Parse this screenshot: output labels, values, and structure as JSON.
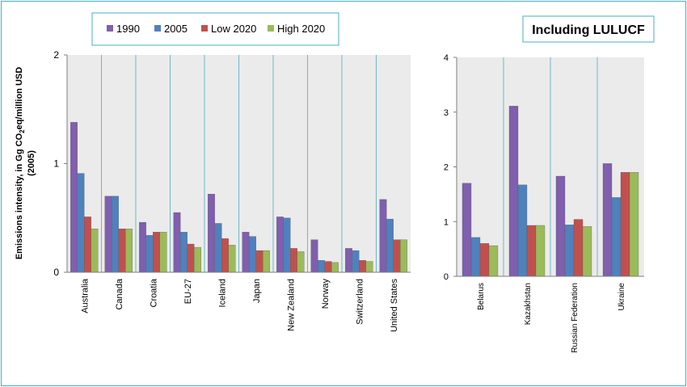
{
  "legend": {
    "entries": [
      {
        "label": "1990",
        "color": "#7f5fae"
      },
      {
        "label": "2005",
        "color": "#4f81bd"
      },
      {
        "label": "Low 2020",
        "color": "#c0504d"
      },
      {
        "label": "High 2020",
        "color": "#9bbb59"
      }
    ]
  },
  "title_right": "Including LULUCF",
  "ylabel_line1": "Emissions intensity, in Gg CO",
  "ylabel_sub": "2",
  "ylabel_line1_end": "eq/million USD",
  "ylabel_line2": "(2005)",
  "chart_data": [
    {
      "type": "bar",
      "categories": [
        "Australia",
        "Canada",
        "Croatia",
        "EU-27",
        "Iceland",
        "Japan",
        "New Zealand",
        "Norway",
        "Switzerland",
        "United States"
      ],
      "series": [
        {
          "name": "1990",
          "values": [
            1.38,
            0.7,
            0.46,
            0.55,
            0.72,
            0.37,
            0.51,
            0.3,
            0.22,
            0.67
          ]
        },
        {
          "name": "2005",
          "values": [
            0.91,
            0.7,
            0.34,
            0.37,
            0.45,
            0.33,
            0.5,
            0.11,
            0.2,
            0.49
          ]
        },
        {
          "name": "Low 2020",
          "values": [
            0.51,
            0.4,
            0.37,
            0.26,
            0.31,
            0.2,
            0.22,
            0.1,
            0.11,
            0.3
          ]
        },
        {
          "name": "High 2020",
          "values": [
            0.4,
            0.4,
            0.37,
            0.23,
            0.25,
            0.2,
            0.19,
            0.09,
            0.1,
            0.3
          ]
        }
      ],
      "ylim": [
        0,
        2
      ],
      "yticks": [
        "0",
        "1",
        "2"
      ],
      "grid": false
    },
    {
      "type": "bar",
      "title": "Including LULUCF",
      "categories": [
        "Belarus",
        "Kazakhstan",
        "Russian Federation",
        "Ukraine"
      ],
      "series": [
        {
          "name": "1990",
          "values": [
            1.7,
            3.11,
            1.83,
            2.06
          ]
        },
        {
          "name": "2005",
          "values": [
            0.71,
            1.67,
            0.94,
            1.44
          ]
        },
        {
          "name": "Low 2020",
          "values": [
            0.6,
            0.93,
            1.04,
            1.9
          ]
        },
        {
          "name": "High 2020",
          "values": [
            0.56,
            0.93,
            0.91,
            1.9
          ]
        }
      ],
      "ylim": [
        0,
        4
      ],
      "yticks": [
        "0",
        "1",
        "2",
        "3",
        "4"
      ],
      "grid": false
    }
  ]
}
